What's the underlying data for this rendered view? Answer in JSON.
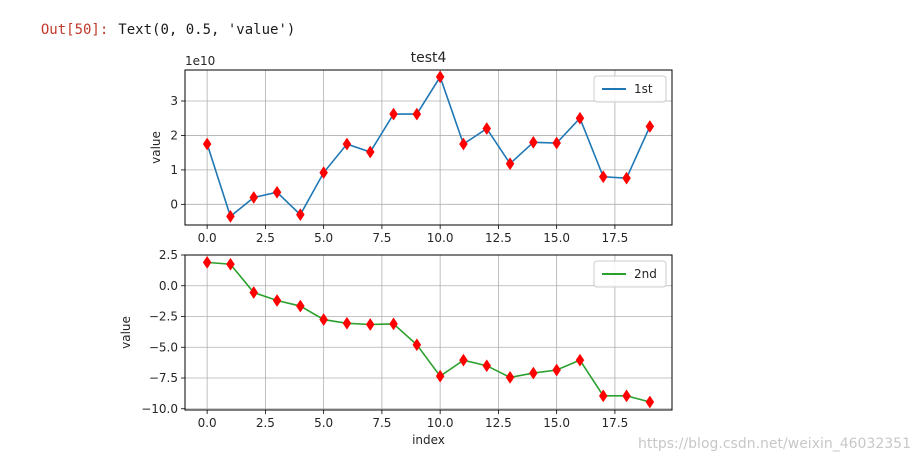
{
  "output": {
    "prompt": "Out[50]:",
    "text": "Text(0, 0.5, 'value')"
  },
  "watermark": "https://blog.csdn.net/weixin_46032351",
  "colors": {
    "series1": "#1f77b4",
    "series2": "#2ca02c",
    "marker": "#ff0000",
    "grid": "#b0b0b0"
  },
  "chart_data": [
    {
      "type": "line",
      "title": "test4",
      "ylabel": "value",
      "xlabel": "",
      "offset_label": "1e10",
      "x": [
        0,
        1,
        2,
        3,
        4,
        5,
        6,
        7,
        8,
        9,
        10,
        11,
        12,
        13,
        14,
        15,
        16,
        17,
        18,
        19
      ],
      "series": [
        {
          "name": "1st",
          "values": [
            1.75,
            -0.35,
            0.2,
            0.35,
            -0.3,
            0.92,
            1.75,
            1.52,
            2.62,
            2.62,
            3.7,
            1.75,
            2.2,
            1.18,
            1.8,
            1.78,
            2.5,
            0.8,
            0.76,
            2.26
          ]
        }
      ],
      "marker": "d",
      "xlim": [
        -0.95,
        19.95
      ],
      "ylim": [
        -0.6,
        3.9
      ],
      "xticks": [
        0,
        2.5,
        5,
        7.5,
        10,
        12.5,
        15,
        17.5
      ],
      "xtick_labels": [
        "0.0",
        "2.5",
        "5.0",
        "7.5",
        "10.0",
        "12.5",
        "15.0",
        "17.5"
      ],
      "yticks": [
        0,
        1,
        2,
        3
      ],
      "ytick_labels": [
        "0",
        "1",
        "2",
        "3"
      ],
      "grid": true,
      "legend": "upper right"
    },
    {
      "type": "line",
      "title": "",
      "ylabel": "value",
      "xlabel": "index",
      "x": [
        0,
        1,
        2,
        3,
        4,
        5,
        6,
        7,
        8,
        9,
        10,
        11,
        12,
        13,
        14,
        15,
        16,
        17,
        18,
        19
      ],
      "series": [
        {
          "name": "2nd",
          "values": [
            1.9,
            1.75,
            -0.55,
            -1.2,
            -1.65,
            -2.75,
            -3.05,
            -3.15,
            -3.1,
            -4.8,
            -7.35,
            -6.05,
            -6.5,
            -7.45,
            -7.1,
            -6.85,
            -6.05,
            -8.95,
            -8.95,
            -9.45
          ]
        }
      ],
      "marker": "d",
      "xlim": [
        -0.95,
        19.95
      ],
      "ylim": [
        -10.1,
        2.5
      ],
      "xticks": [
        0,
        2.5,
        5,
        7.5,
        10,
        12.5,
        15,
        17.5
      ],
      "xtick_labels": [
        "0.0",
        "2.5",
        "5.0",
        "7.5",
        "10.0",
        "12.5",
        "15.0",
        "17.5"
      ],
      "yticks": [
        2.5,
        0,
        -2.5,
        -5,
        -7.5,
        -10
      ],
      "ytick_labels": [
        "2.5",
        "0.0",
        "−2.5",
        "−5.0",
        "−7.5",
        "−10.0"
      ],
      "grid": true,
      "legend": "upper right"
    }
  ]
}
